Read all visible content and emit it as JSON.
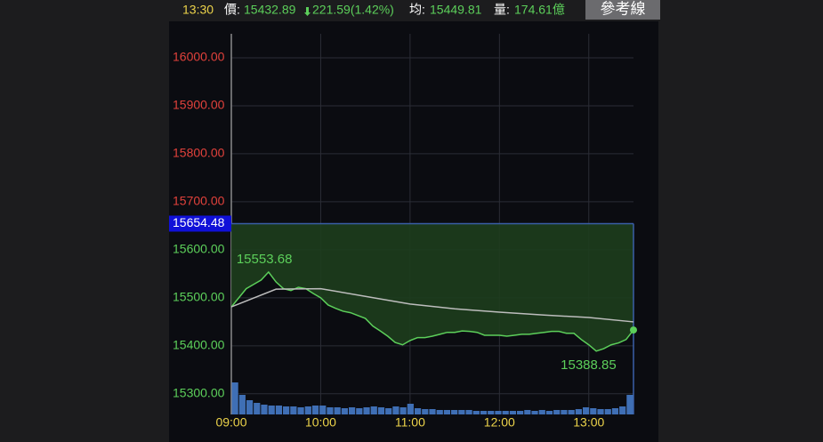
{
  "header": {
    "time": "13:30",
    "price_label": "價:",
    "price": 15432.89,
    "change": "221.59(1.42%)",
    "avg_label": "均:",
    "avg": 15449.81,
    "volume_label": "量:",
    "volume": "174.61億",
    "button": "參考線"
  },
  "chart_data": {
    "type": "line",
    "reference": 15654.48,
    "high": 15553.68,
    "low": 15388.85,
    "up_color": "#e0413b",
    "down_color": "#5ccf5a",
    "grid": true,
    "ylim": [
      15257,
      16050
    ],
    "yticks": [
      {
        "value": 15300,
        "label": "15300.00"
      },
      {
        "value": 15400,
        "label": "15400.00"
      },
      {
        "value": 15500,
        "label": "15500.00"
      },
      {
        "value": 15600,
        "label": "15600.00"
      },
      {
        "value": 15700,
        "label": "15700.00"
      },
      {
        "value": 15800,
        "label": "15800.00"
      },
      {
        "value": 15900,
        "label": "15900.00"
      },
      {
        "value": 16000,
        "label": "16000.00"
      }
    ],
    "xlim": [
      "09:00",
      "13:30"
    ],
    "xticks": [
      "09:00",
      "10:00",
      "11:00",
      "12:00",
      "13:00"
    ],
    "series": [
      {
        "color": "#5ccf5a",
        "x": [
          "09:00",
          "09:05",
          "09:10",
          "09:15",
          "09:20",
          "09:25",
          "09:30",
          "09:35",
          "09:40",
          "09:45",
          "09:50",
          "09:55",
          "10:00",
          "10:05",
          "10:10",
          "10:15",
          "10:20",
          "10:25",
          "10:30",
          "10:35",
          "10:40",
          "10:45",
          "10:50",
          "10:55",
          "11:00",
          "11:05",
          "11:10",
          "11:15",
          "11:20",
          "11:25",
          "11:30",
          "11:35",
          "11:40",
          "11:45",
          "11:50",
          "11:55",
          "12:00",
          "12:05",
          "12:10",
          "12:15",
          "12:20",
          "12:25",
          "12:30",
          "12:35",
          "12:40",
          "12:45",
          "12:50",
          "12:55",
          "13:00",
          "13:05",
          "13:10",
          "13:15",
          "13:20",
          "13:25",
          "13:30"
        ],
        "values": [
          15481,
          15500,
          15519,
          15528,
          15537,
          15553.68,
          15533,
          15519,
          15515,
          15522,
          15519,
          15509,
          15500,
          15485,
          15478,
          15472,
          15469,
          15463,
          15457,
          15441,
          15431,
          15420,
          15407,
          15402,
          15411,
          15417,
          15417,
          15420,
          15424,
          15428,
          15428,
          15431,
          15430,
          15428,
          15422,
          15422,
          15422,
          15420,
          15422,
          15424,
          15424,
          15426,
          15428,
          15430,
          15430,
          15426,
          15426,
          15413,
          15402,
          15388.85,
          15394,
          15402,
          15406,
          15413,
          15432.89
        ]
      },
      {
        "color": "#bdbdbd",
        "x": [
          "09:00",
          "09:30",
          "10:00",
          "10:30",
          "11:00",
          "11:30",
          "12:00",
          "12:30",
          "13:00",
          "13:30"
        ],
        "values": [
          15481,
          15518,
          15519,
          15503,
          15487,
          15477,
          15470,
          15464,
          15459,
          15449.81
        ]
      }
    ],
    "volume": {
      "color": "#3f6fb5",
      "ylim": [
        0,
        40
      ],
      "values": [
        36,
        22,
        16,
        13,
        11,
        10,
        10,
        9,
        9,
        8,
        9,
        10,
        10,
        8,
        8,
        7,
        8,
        7,
        8,
        9,
        8,
        7,
        9,
        8,
        12,
        7,
        6,
        6,
        5,
        5,
        5,
        5,
        5,
        4,
        4,
        4,
        4,
        4,
        4,
        4,
        5,
        4,
        5,
        4,
        5,
        5,
        5,
        6,
        8,
        7,
        6,
        6,
        7,
        9,
        22
      ]
    }
  }
}
